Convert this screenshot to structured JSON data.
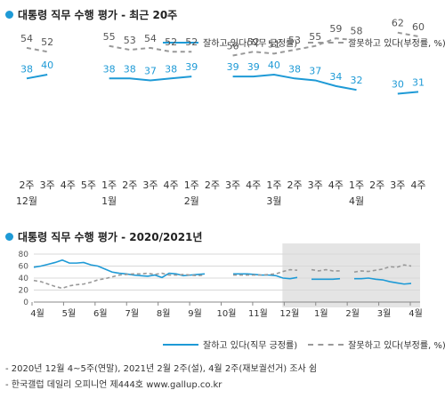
{
  "chart_data": [
    {
      "type": "line",
      "title": "대통령 직무 수행 평가 - 최근 20주",
      "week_labels": [
        "2주",
        "3주",
        "4주",
        "5주",
        "1주",
        "2주",
        "3주",
        "4주",
        "1주",
        "2주",
        "3주",
        "4주",
        "1주",
        "2주",
        "3주",
        "4주",
        "1주",
        "2주",
        "3주",
        "4주"
      ],
      "month_labels": [
        {
          "at": 0,
          "label": "12월"
        },
        {
          "at": 4,
          "label": "1월"
        },
        {
          "at": 8,
          "label": "2월"
        },
        {
          "at": 12,
          "label": "3월"
        },
        {
          "at": 16,
          "label": "4월"
        }
      ],
      "series": [
        {
          "name": "잘하고 있다(직무 긍정률)",
          "color": "#1e9ad6",
          "dashed": false,
          "values": [
            38,
            40,
            null,
            null,
            38,
            38,
            37,
            38,
            39,
            null,
            39,
            39,
            40,
            38,
            37,
            34,
            32,
            null,
            30,
            31
          ]
        },
        {
          "name": "잘못하고 있다(부정률, %)",
          "color": "#999999",
          "dashed": true,
          "values": [
            54,
            52,
            null,
            null,
            55,
            53,
            54,
            52,
            52,
            null,
            50,
            52,
            51,
            53,
            55,
            59,
            58,
            null,
            62,
            60
          ]
        }
      ],
      "ylim": [
        0,
        75
      ]
    },
    {
      "type": "line",
      "title": "대통령 직무 수행 평가 - 2020/2021년",
      "y_ticks": [
        0,
        20,
        40,
        60,
        80
      ],
      "ylim": [
        0,
        80
      ],
      "month_labels": [
        "4월",
        "5월",
        "6월",
        "7월",
        "8월",
        "9월",
        "10월",
        "11월",
        "12월",
        "1월",
        "2월",
        "3월",
        "4월"
      ],
      "shaded_from_month": "12월",
      "series": [
        {
          "name": "잘하고 있다(직무 긍정률)",
          "color": "#1e9ad6",
          "dashed": false,
          "values": [
            58,
            60,
            63,
            66,
            70,
            65,
            65,
            66,
            62,
            60,
            55,
            50,
            48,
            47,
            45,
            44,
            43,
            45,
            41,
            48,
            47,
            44,
            45,
            46,
            47,
            null,
            null,
            null,
            47,
            47,
            47,
            46,
            45,
            45,
            44,
            40,
            39,
            41,
            null,
            38,
            38,
            38,
            38,
            39,
            null,
            39,
            39,
            40,
            38,
            37,
            34,
            32,
            30,
            31
          ]
        },
        {
          "name": "잘못하고 있다(부정률, %)",
          "color": "#999999",
          "dashed": true,
          "values": [
            36,
            34,
            30,
            26,
            23,
            27,
            29,
            30,
            33,
            37,
            39,
            42,
            45,
            46,
            47,
            47,
            48,
            46,
            48,
            45,
            45,
            46,
            45,
            44,
            45,
            null,
            null,
            null,
            45,
            45,
            45,
            45,
            45,
            46,
            47,
            51,
            54,
            53,
            null,
            54,
            52,
            54,
            52,
            52,
            null,
            50,
            52,
            51,
            53,
            55,
            59,
            58,
            62,
            60
          ]
        }
      ]
    }
  ],
  "legend": {
    "positive": "잘하고 있다(직무 긍정률)",
    "negative": "잘못하고 있다(부정률, %)"
  },
  "footnotes": [
    "- 2020년 12월 4~5주(연말), 2021년 2월 2주(설), 4월 2주(재보궐선거) 조사 쉼",
    "- 한국갤럽 데일리 오피니언 제444호 www.gallup.co.kr"
  ]
}
